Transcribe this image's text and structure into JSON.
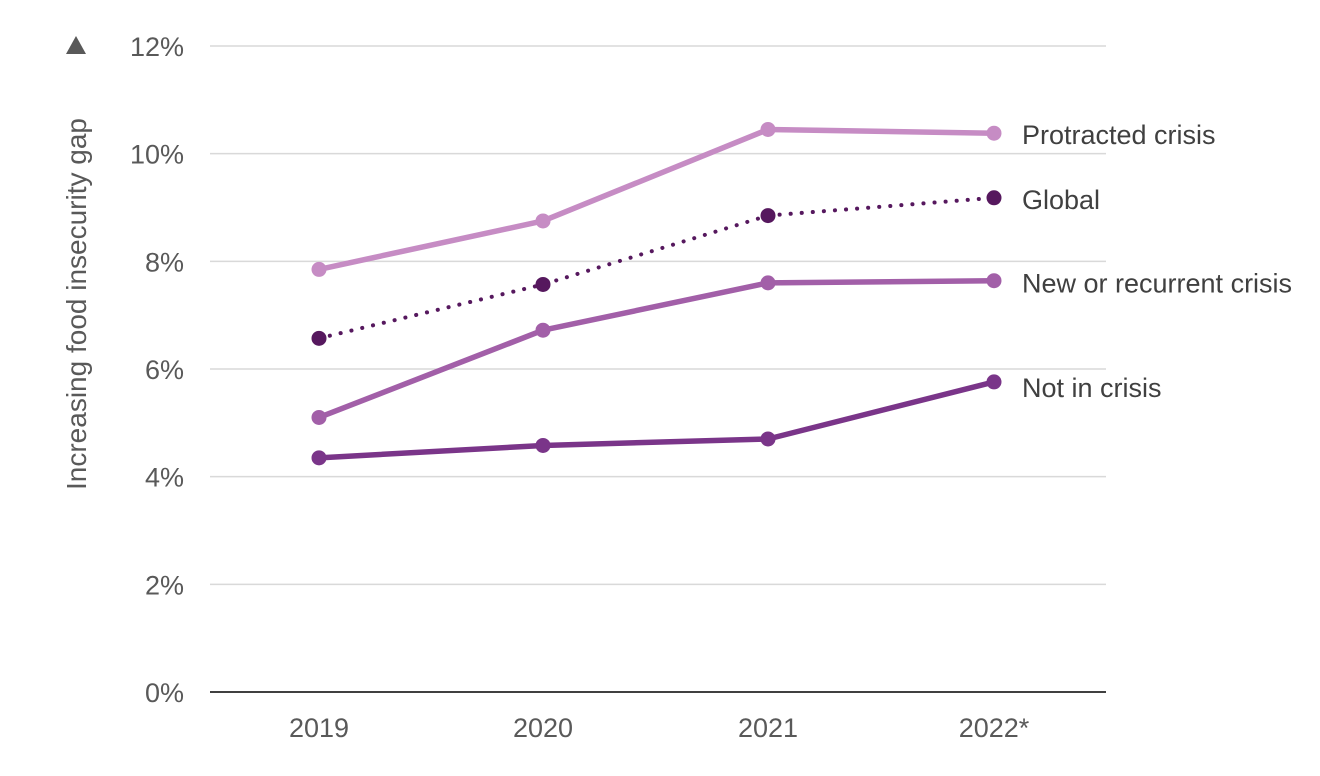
{
  "chart_data": {
    "type": "line",
    "categories": [
      "2019",
      "2020",
      "2021",
      "2022*"
    ],
    "ylabel": "Increasing food insecurity gap",
    "ylim": [
      0,
      12
    ],
    "yticks": [
      "0%",
      "2%",
      "4%",
      "6%",
      "8%",
      "10%",
      "12%"
    ],
    "ytick_values": [
      0,
      2,
      4,
      6,
      8,
      10,
      12
    ],
    "grid": true,
    "legend": "direct labels at right end of lines",
    "series": [
      {
        "name": "Protracted crisis",
        "values": [
          7.85,
          8.75,
          10.45,
          10.38
        ],
        "color": "#c68cc4",
        "style": "solid"
      },
      {
        "name": "Global",
        "values": [
          6.57,
          7.57,
          8.85,
          9.18
        ],
        "color": "#56185e",
        "style": "dotted"
      },
      {
        "name": "New or recurrent crisis",
        "values": [
          5.1,
          6.72,
          7.6,
          7.64
        ],
        "color": "#a25fa8",
        "style": "solid"
      },
      {
        "name": "Not in crisis",
        "values": [
          4.35,
          4.58,
          4.7,
          5.76
        ],
        "color": "#7a3589",
        "style": "solid"
      }
    ]
  }
}
